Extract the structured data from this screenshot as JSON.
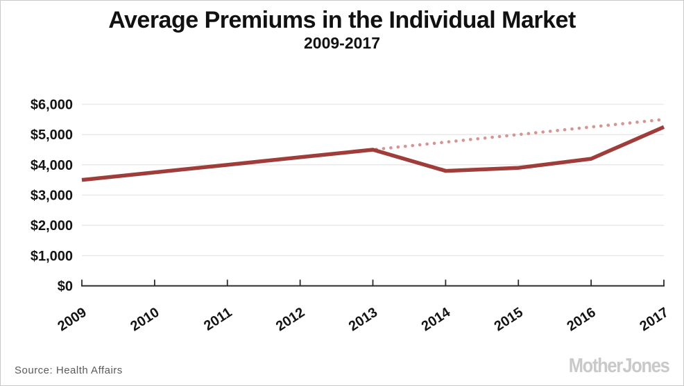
{
  "header": {
    "title": "Average Premiums in the Individual Market",
    "subtitle": "2009-2017"
  },
  "footer": {
    "source": "Source:  Health Affairs",
    "brand": "Mother Jones"
  },
  "chart_data": {
    "type": "line",
    "title": "Average Premiums in the Individual Market",
    "subtitle": "2009-2017",
    "x": [
      2009,
      2010,
      2011,
      2012,
      2013,
      2014,
      2015,
      2016,
      2017
    ],
    "x_tick_labels": [
      "2009",
      "2010",
      "2011",
      "2012",
      "2013",
      "2014",
      "2015",
      "2016",
      "2017"
    ],
    "series": [
      {
        "id": "dotted-projection",
        "style": "dotted",
        "color": "#d69492",
        "x": [
          2013,
          2014,
          2015,
          2016,
          2017
        ],
        "values": [
          4500,
          4750,
          5000,
          5250,
          5500
        ]
      },
      {
        "id": "solid-actual",
        "style": "solid",
        "color": "#9f3d3b",
        "x": [
          2009,
          2010,
          2011,
          2012,
          2013,
          2014,
          2015,
          2016,
          2017
        ],
        "values": [
          3500,
          3750,
          4000,
          4250,
          4500,
          3800,
          3900,
          4200,
          5250
        ]
      }
    ],
    "ylim": [
      0,
      6000
    ],
    "ytick_values": [
      0,
      1000,
      2000,
      3000,
      4000,
      5000,
      6000
    ],
    "ytick_labels": [
      "$0",
      "$1,000",
      "$2,000",
      "$3,000",
      "$4,000",
      "$5,000",
      "$6,000"
    ],
    "grid": true,
    "legend": false,
    "grid_color": "#eaeaea",
    "axis_color": "#2b2b2b",
    "tick_label_color": "#141414"
  }
}
